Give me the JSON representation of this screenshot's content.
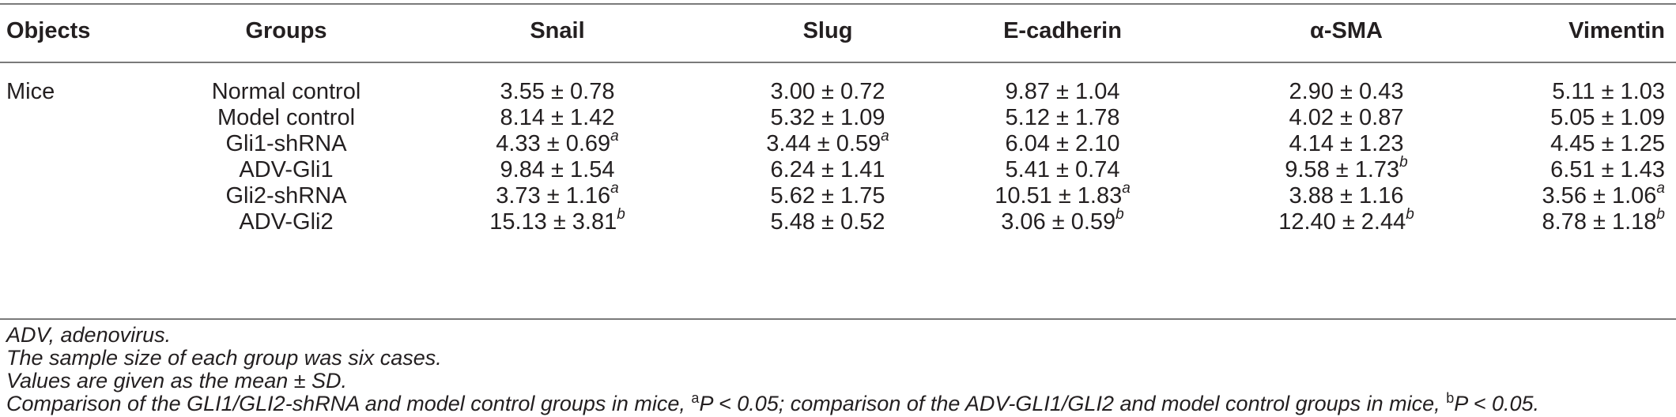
{
  "table": {
    "headers": {
      "objects": "Objects",
      "groups": "Groups",
      "snail": "Snail",
      "slug": "Slug",
      "ecad": "E-cadherin",
      "asma": "α-SMA",
      "vim": "Vimentin"
    },
    "object_label": "Mice",
    "rows": [
      {
        "group": "Normal control",
        "snail": "3.55 ± 0.78",
        "snail_sup": "",
        "slug": "3.00 ± 0.72",
        "slug_sup": "",
        "ecad": "9.87 ± 1.04",
        "ecad_sup": "",
        "asma": "2.90 ± 0.43",
        "asma_sup": "",
        "vim": "5.11 ± 1.03",
        "vim_sup": ""
      },
      {
        "group": "Model control",
        "snail": "8.14 ± 1.42",
        "snail_sup": "",
        "slug": "5.32 ± 1.09",
        "slug_sup": "",
        "ecad": "5.12 ± 1.78",
        "ecad_sup": "",
        "asma": "4.02 ± 0.87",
        "asma_sup": "",
        "vim": "5.05 ± 1.09",
        "vim_sup": ""
      },
      {
        "group": "Gli1-shRNA",
        "snail": "4.33 ± 0.69",
        "snail_sup": "a",
        "slug": "3.44 ± 0.59",
        "slug_sup": "a",
        "ecad": "6.04 ± 2.10",
        "ecad_sup": "",
        "asma": "4.14 ± 1.23",
        "asma_sup": "",
        "vim": "4.45 ± 1.25",
        "vim_sup": ""
      },
      {
        "group": "ADV-Gli1",
        "snail": "9.84 ± 1.54",
        "snail_sup": "",
        "slug": "6.24 ± 1.41",
        "slug_sup": "",
        "ecad": "5.41 ± 0.74",
        "ecad_sup": "",
        "asma": "9.58 ± 1.73",
        "asma_sup": "b",
        "vim": "6.51 ± 1.43",
        "vim_sup": ""
      },
      {
        "group": "Gli2-shRNA",
        "snail": "3.73 ± 1.16",
        "snail_sup": "a",
        "slug": "5.62 ± 1.75",
        "slug_sup": "",
        "ecad": "10.51 ± 1.83",
        "ecad_sup": "a",
        "asma": "3.88 ± 1.16",
        "asma_sup": "",
        "vim": "3.56 ± 1.06",
        "vim_sup": "a"
      },
      {
        "group": "ADV-Gli2",
        "snail": "15.13 ± 3.81",
        "snail_sup": "b",
        "slug": "5.48 ± 0.52",
        "slug_sup": "",
        "ecad": "3.06 ± 0.59",
        "ecad_sup": "b",
        "asma": "12.40 ± 2.44",
        "asma_sup": "b",
        "vim": "8.78 ± 1.18",
        "vim_sup": "b"
      }
    ]
  },
  "footnotes": {
    "line1": "ADV, adenovirus.",
    "line2": "The sample size of each group was six cases.",
    "line3": "Values are given as the mean ± SD.",
    "line4_part1": "Comparison of the GLI1/GLI2-shRNA and model control groups in mice, ",
    "line4_sup1": "a",
    "line4_part2": "P < 0.05; comparison of the ADV-GLI1/GLI2 and model control groups in mice, ",
    "line4_sup2": "b",
    "line4_part3": "P < 0.05."
  }
}
